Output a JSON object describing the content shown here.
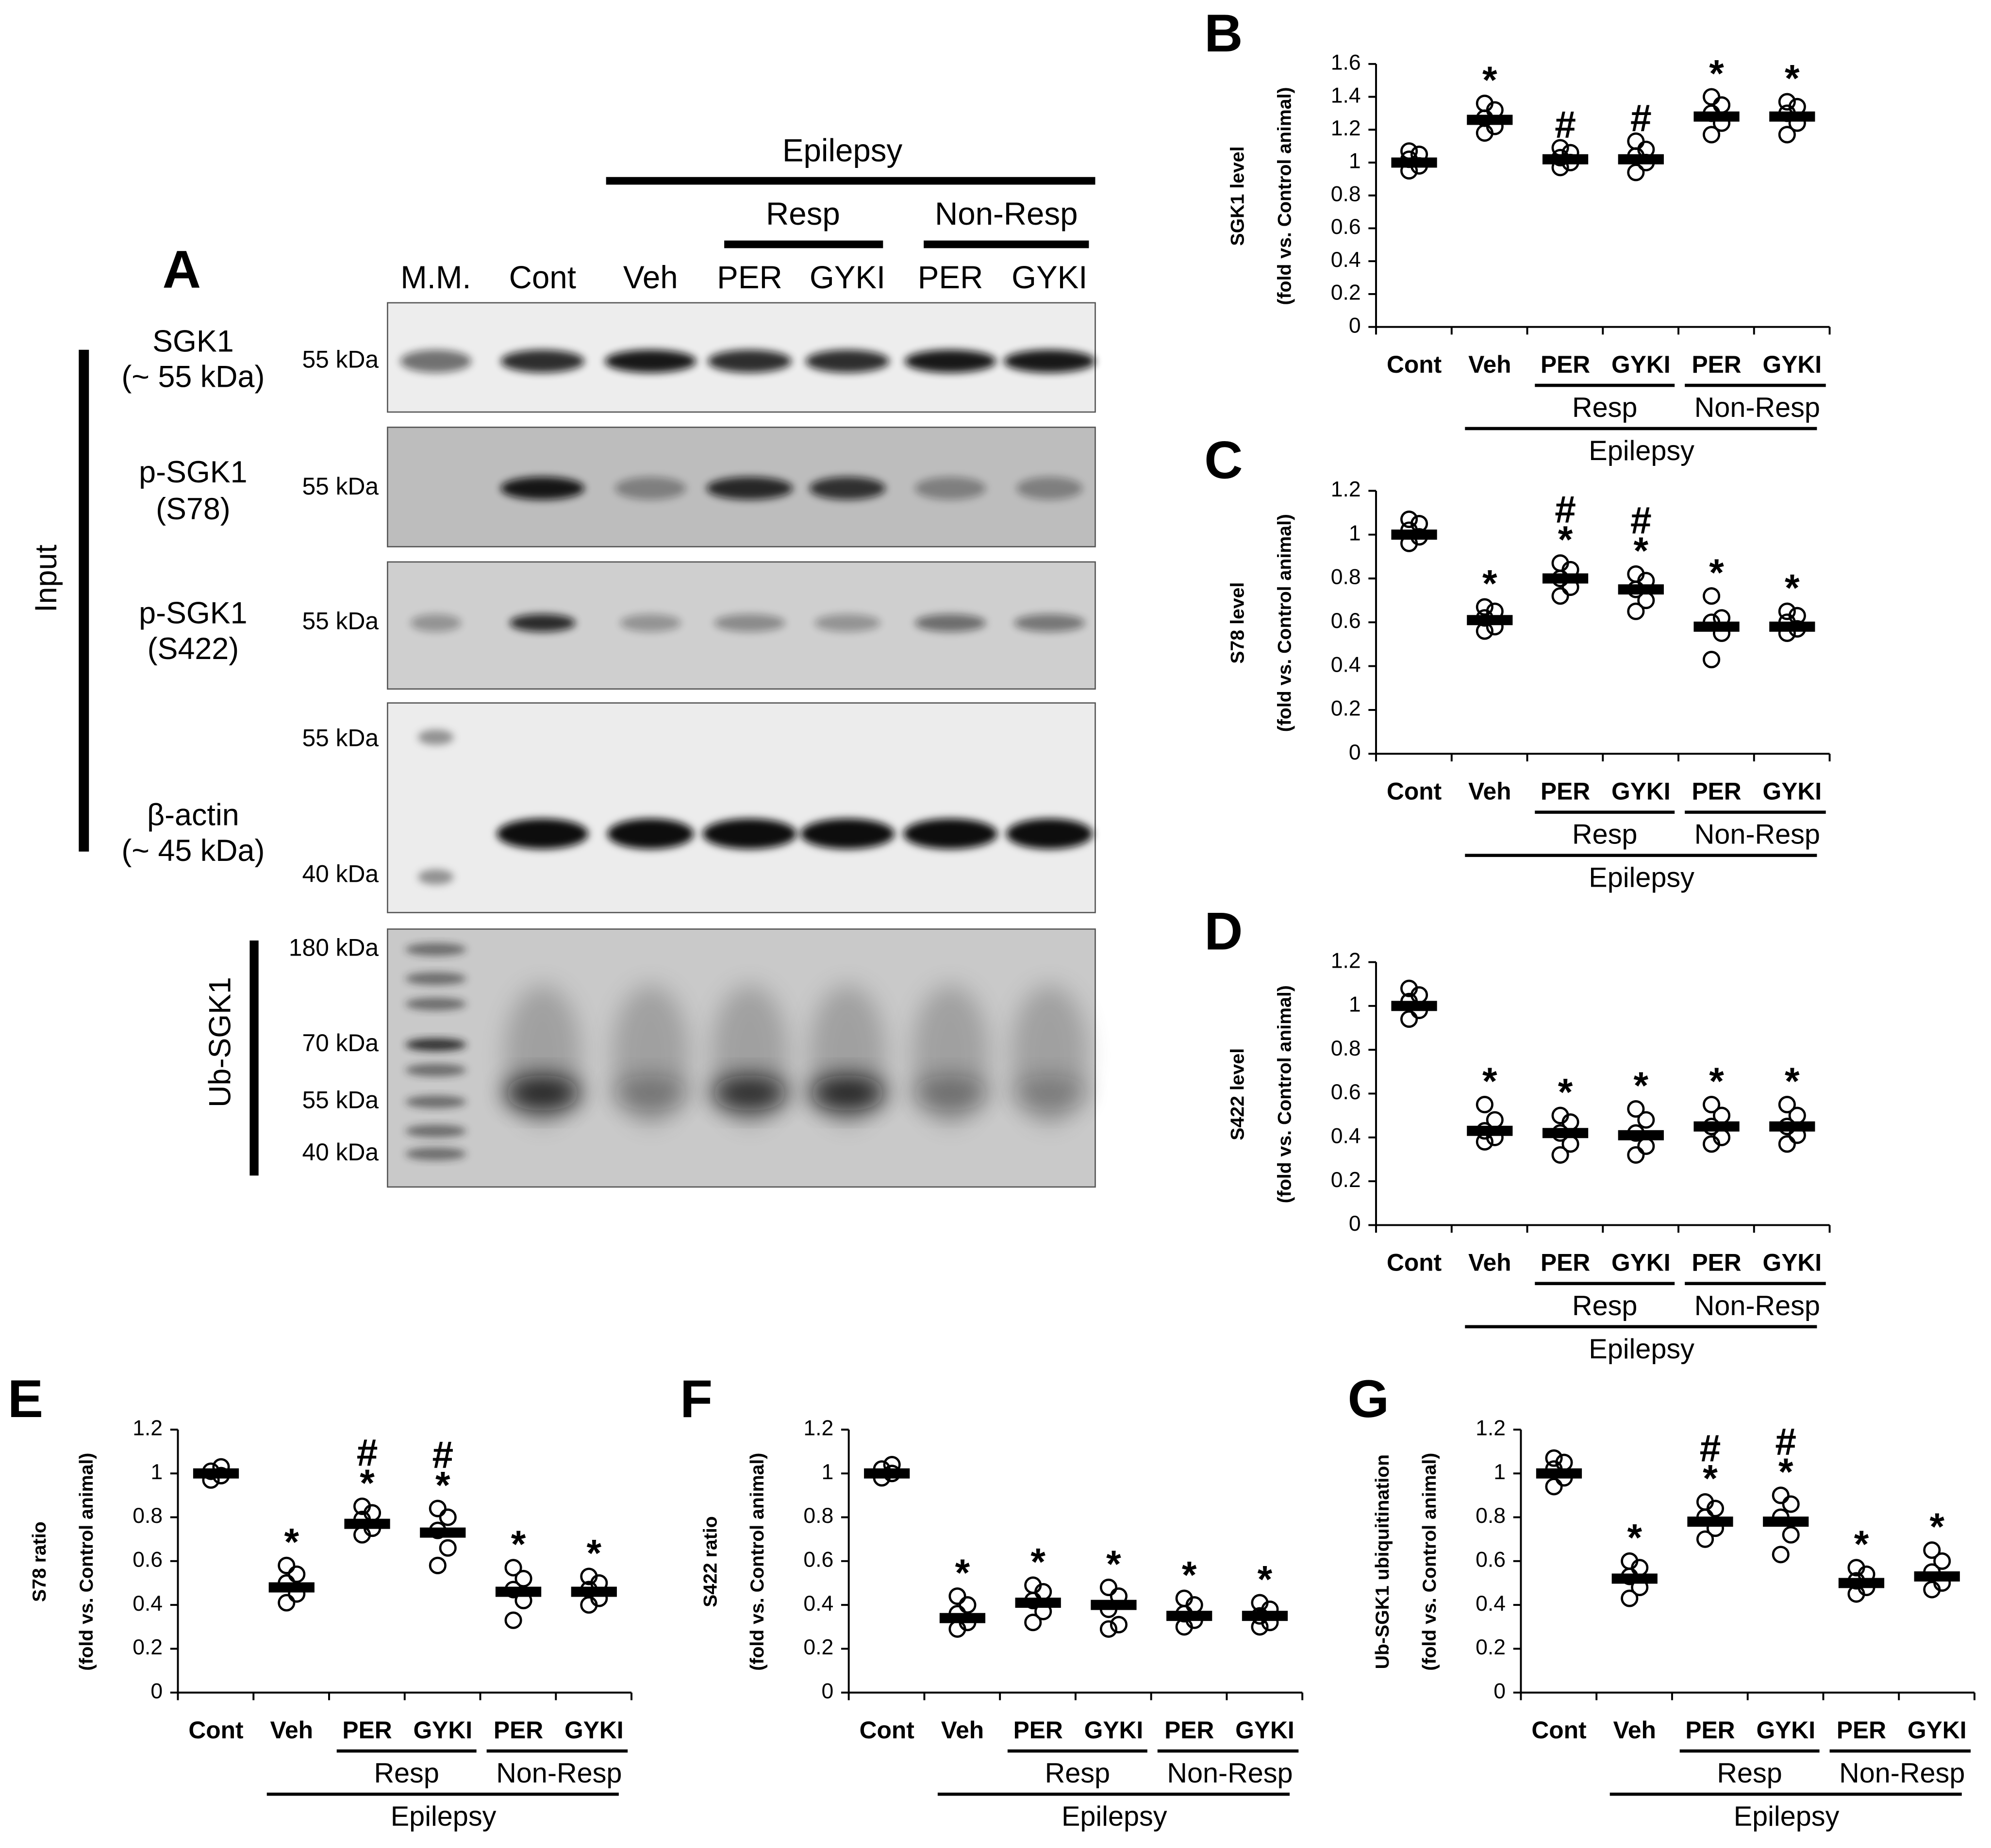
{
  "panel_a": {
    "label": "A",
    "group_top": "Epilepsy",
    "group_resp": "Resp",
    "group_nonresp": "Non-Resp",
    "lanes": [
      "M.M.",
      "Cont",
      "Veh",
      "PER",
      "GYKI",
      "PER",
      "GYKI"
    ],
    "input_label": "Input",
    "ub_label": "Ub-SGK1",
    "rows": [
      {
        "name": "SGK1",
        "sub": "(~ 55 kDa)",
        "markers": [
          "55 kDa"
        ]
      },
      {
        "name": "p-SGK1",
        "sub": "(S78)",
        "markers": [
          "55 kDa"
        ]
      },
      {
        "name": "p-SGK1",
        "sub": "(S422)",
        "markers": [
          "55 kDa"
        ]
      },
      {
        "name": "β-actin",
        "sub": "(~ 45 kDa)",
        "markers": [
          "55 kDa",
          "40 kDa"
        ]
      },
      {
        "markers": [
          "180 kDa",
          "70 kDa",
          "55 kDa",
          "40 kDa"
        ]
      }
    ]
  },
  "chart_data": [
    {
      "type": "dot",
      "panel": "B",
      "ylabel": [
        "SGK1 level",
        "(fold vs. Control animal)"
      ],
      "categories": [
        "Cont",
        "Veh",
        "PER",
        "GYKI",
        "PER",
        "GYKI"
      ],
      "groups": {
        "resp": "Resp",
        "nonresp": "Non-Resp",
        "epilepsy": "Epilepsy"
      },
      "ylim": [
        0,
        1.6
      ],
      "yticks": [
        0,
        0.2,
        0.4,
        0.6,
        0.8,
        1,
        1.2,
        1.4,
        1.6
      ],
      "values": [
        1.0,
        1.26,
        1.02,
        1.02,
        1.28,
        1.28
      ],
      "points": [
        [
          0.95,
          0.98,
          1.02,
          1.05,
          1.07
        ],
        [
          1.18,
          1.22,
          1.27,
          1.32,
          1.36
        ],
        [
          0.97,
          1.0,
          1.03,
          1.06,
          1.09
        ],
        [
          0.94,
          1.0,
          1.04,
          1.08,
          1.13
        ],
        [
          1.17,
          1.24,
          1.3,
          1.35,
          1.4
        ],
        [
          1.17,
          1.24,
          1.3,
          1.34,
          1.37
        ]
      ],
      "markers": [
        null,
        [
          "*"
        ],
        [
          "#"
        ],
        [
          "#"
        ],
        [
          "*"
        ],
        [
          "*"
        ]
      ]
    },
    {
      "type": "dot",
      "panel": "C",
      "ylabel": [
        "S78 level",
        "(fold vs. Control animal)"
      ],
      "categories": [
        "Cont",
        "Veh",
        "PER",
        "GYKI",
        "PER",
        "GYKI"
      ],
      "groups": {
        "resp": "Resp",
        "nonresp": "Non-Resp",
        "epilepsy": "Epilepsy"
      },
      "ylim": [
        0,
        1.2
      ],
      "yticks": [
        0,
        0.2,
        0.4,
        0.6,
        0.8,
        1,
        1.2
      ],
      "values": [
        1.0,
        0.61,
        0.8,
        0.75,
        0.58,
        0.58
      ],
      "points": [
        [
          0.96,
          0.99,
          1.02,
          1.05,
          1.07
        ],
        [
          0.56,
          0.58,
          0.62,
          0.65,
          0.67
        ],
        [
          0.72,
          0.76,
          0.8,
          0.84,
          0.87
        ],
        [
          0.65,
          0.7,
          0.75,
          0.79,
          0.82
        ],
        [
          0.43,
          0.55,
          0.6,
          0.62,
          0.72
        ],
        [
          0.55,
          0.57,
          0.6,
          0.63,
          0.65
        ]
      ],
      "markers": [
        null,
        [
          "*"
        ],
        [
          "#",
          "*"
        ],
        [
          "#",
          "*"
        ],
        [
          "*"
        ],
        [
          "*"
        ]
      ]
    },
    {
      "type": "dot",
      "panel": "D",
      "ylabel": [
        "S422 level",
        "(fold vs. Control animal)"
      ],
      "categories": [
        "Cont",
        "Veh",
        "PER",
        "GYKI",
        "PER",
        "GYKI"
      ],
      "groups": {
        "resp": "Resp",
        "nonresp": "Non-Resp",
        "epilepsy": "Epilepsy"
      },
      "ylim": [
        0,
        1.2
      ],
      "yticks": [
        0,
        0.2,
        0.4,
        0.6,
        0.8,
        1,
        1.2
      ],
      "values": [
        1.0,
        0.43,
        0.42,
        0.41,
        0.45,
        0.45
      ],
      "points": [
        [
          0.94,
          0.98,
          1.02,
          1.05,
          1.08
        ],
        [
          0.38,
          0.4,
          0.43,
          0.48,
          0.55
        ],
        [
          0.32,
          0.37,
          0.42,
          0.47,
          0.5
        ],
        [
          0.32,
          0.36,
          0.42,
          0.48,
          0.53
        ],
        [
          0.37,
          0.4,
          0.45,
          0.5,
          0.55
        ],
        [
          0.37,
          0.41,
          0.45,
          0.5,
          0.55
        ]
      ],
      "markers": [
        null,
        [
          "*"
        ],
        [
          "*"
        ],
        [
          "*"
        ],
        [
          "*"
        ],
        [
          "*"
        ]
      ]
    },
    {
      "type": "dot",
      "panel": "E",
      "ylabel": [
        "S78 ratio",
        "(fold vs. Control animal)"
      ],
      "categories": [
        "Cont",
        "Veh",
        "PER",
        "GYKI",
        "PER",
        "GYKI"
      ],
      "groups": {
        "resp": "Resp",
        "nonresp": "Non-Resp",
        "epilepsy": "Epilepsy"
      },
      "ylim": [
        0,
        1.2
      ],
      "yticks": [
        0,
        0.2,
        0.4,
        0.6,
        0.8,
        1,
        1.2
      ],
      "values": [
        1.0,
        0.48,
        0.77,
        0.73,
        0.46,
        0.46
      ],
      "points": [
        [
          0.97,
          0.99,
          1.01,
          1.03
        ],
        [
          0.41,
          0.45,
          0.5,
          0.54,
          0.58
        ],
        [
          0.72,
          0.75,
          0.79,
          0.82,
          0.85
        ],
        [
          0.58,
          0.66,
          0.74,
          0.8,
          0.84
        ],
        [
          0.33,
          0.42,
          0.47,
          0.52,
          0.57
        ],
        [
          0.4,
          0.43,
          0.47,
          0.5,
          0.53
        ]
      ],
      "markers": [
        null,
        [
          "*"
        ],
        [
          "#",
          "*"
        ],
        [
          "#",
          "*"
        ],
        [
          "*"
        ],
        [
          "*"
        ]
      ]
    },
    {
      "type": "dot",
      "panel": "F",
      "ylabel": [
        "S422 ratio",
        "(fold vs. Control animal)"
      ],
      "categories": [
        "Cont",
        "Veh",
        "PER",
        "GYKI",
        "PER",
        "GYKI"
      ],
      "groups": {
        "resp": "Resp",
        "nonresp": "Non-Resp",
        "epilepsy": "Epilepsy"
      },
      "ylim": [
        0,
        1.2
      ],
      "yticks": [
        0,
        0.2,
        0.4,
        0.6,
        0.8,
        1,
        1.2
      ],
      "values": [
        1.0,
        0.34,
        0.41,
        0.4,
        0.35,
        0.35
      ],
      "points": [
        [
          0.98,
          1.0,
          1.02,
          1.04
        ],
        [
          0.29,
          0.32,
          0.36,
          0.4,
          0.44
        ],
        [
          0.32,
          0.37,
          0.42,
          0.46,
          0.49
        ],
        [
          0.29,
          0.31,
          0.38,
          0.44,
          0.48
        ],
        [
          0.3,
          0.33,
          0.36,
          0.4,
          0.43
        ],
        [
          0.3,
          0.32,
          0.35,
          0.38,
          0.41
        ]
      ],
      "markers": [
        null,
        [
          "*"
        ],
        [
          "*"
        ],
        [
          "*"
        ],
        [
          "*"
        ],
        [
          "*"
        ]
      ]
    },
    {
      "type": "dot",
      "panel": "G",
      "ylabel": [
        "Ub-SGK1 ubiquitination",
        "(fold vs. Control animal)"
      ],
      "categories": [
        "Cont",
        "Veh",
        "PER",
        "GYKI",
        "PER",
        "GYKI"
      ],
      "groups": {
        "resp": "Resp",
        "nonresp": "Non-Resp",
        "epilepsy": "Epilepsy"
      },
      "ylim": [
        0,
        1.2
      ],
      "yticks": [
        0,
        0.2,
        0.4,
        0.6,
        0.8,
        1,
        1.2
      ],
      "values": [
        1.0,
        0.52,
        0.78,
        0.78,
        0.5,
        0.53
      ],
      "points": [
        [
          0.94,
          0.98,
          1.02,
          1.05,
          1.07
        ],
        [
          0.43,
          0.48,
          0.53,
          0.57,
          0.6
        ],
        [
          0.7,
          0.75,
          0.8,
          0.84,
          0.87
        ],
        [
          0.63,
          0.72,
          0.8,
          0.86,
          0.9
        ],
        [
          0.45,
          0.48,
          0.51,
          0.54,
          0.57
        ],
        [
          0.47,
          0.5,
          0.55,
          0.6,
          0.65
        ]
      ],
      "markers": [
        null,
        [
          "*"
        ],
        [
          "#",
          "*"
        ],
        [
          "#",
          "*"
        ],
        [
          "*"
        ],
        [
          "*"
        ]
      ]
    }
  ]
}
